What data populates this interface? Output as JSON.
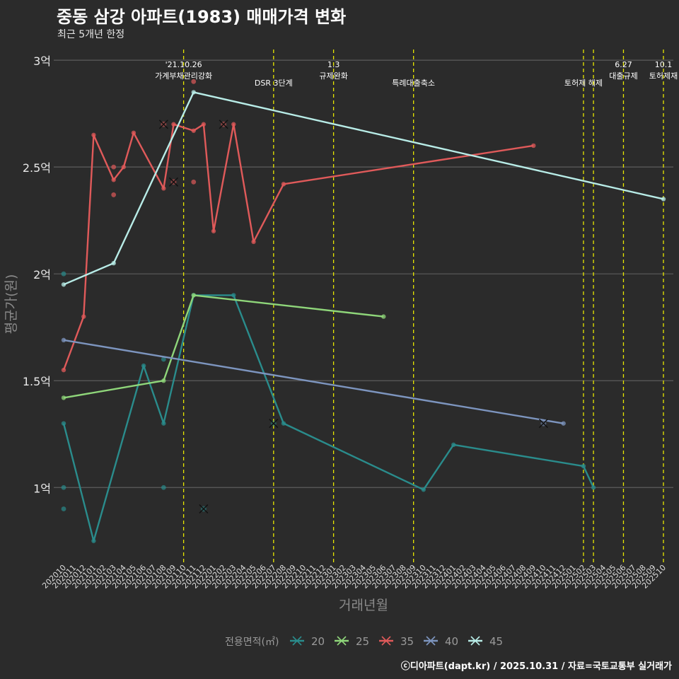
{
  "title": "중동 삼강 아파트(1983) 매매가격 변화",
  "subtitle": "최근 5개년 한정",
  "caption": "ⓒ디아파트(dapt.kr) / 2025.10.31 / 자료=국토교통부 실거래가",
  "chart_data": {
    "type": "line",
    "xlabel": "거래년월",
    "ylabel": "평균가(원)",
    "ylim": [
      0.65,
      3.05
    ],
    "yticks": [
      1,
      1.5,
      2,
      2.5,
      3
    ],
    "ytick_labels": [
      "1억",
      "1.5억",
      "2억",
      "2.5억",
      "3억"
    ],
    "categories": [
      "202010",
      "202011",
      "202012",
      "202101",
      "202102",
      "202103",
      "202104",
      "202105",
      "202106",
      "202107",
      "202108",
      "202109",
      "202110",
      "202111",
      "202112",
      "202201",
      "202202",
      "202203",
      "202204",
      "202205",
      "202206",
      "202207",
      "202208",
      "202209",
      "202210",
      "202211",
      "202212",
      "202301",
      "202302",
      "202303",
      "202304",
      "202305",
      "202306",
      "202307",
      "202308",
      "202309",
      "202310",
      "202311",
      "202312",
      "202401",
      "202402",
      "202403",
      "202404",
      "202405",
      "202406",
      "202407",
      "202408",
      "202409",
      "202410",
      "202411",
      "202412",
      "202501",
      "202502",
      "202503",
      "202504",
      "202505",
      "202506",
      "202507",
      "202508",
      "202509",
      "202510"
    ],
    "legend_title": "전용면적(㎡)",
    "legend_position": "bottom",
    "series": [
      {
        "name": "20",
        "color": "#2a8c8c",
        "line": [
          [
            "202010",
            1.3
          ],
          [
            "202101",
            0.75
          ],
          [
            "202106",
            1.57
          ],
          [
            "202108",
            1.3
          ],
          [
            "202111",
            1.9
          ],
          [
            "202203",
            1.9
          ],
          [
            "202208",
            1.3
          ],
          [
            "202310",
            0.99
          ],
          [
            "202401",
            1.2
          ],
          [
            "202502",
            1.1
          ],
          [
            "202503",
            1.0
          ]
        ],
        "points": [
          [
            "202010",
            2.0
          ],
          [
            "202010",
            1.0
          ],
          [
            "202010",
            0.9
          ],
          [
            "202108",
            1.6
          ],
          [
            "202108",
            1.0
          ]
        ],
        "cancelled": [
          [
            "202112",
            0.9
          ],
          [
            "202207",
            1.3
          ]
        ]
      },
      {
        "name": "25",
        "color": "#8fd67a",
        "line": [
          [
            "202010",
            1.42
          ],
          [
            "202108",
            1.5
          ],
          [
            "202111",
            1.9
          ],
          [
            "202306",
            1.8
          ]
        ],
        "points": [],
        "cancelled": []
      },
      {
        "name": "35",
        "color": "#e05a5a",
        "line": [
          [
            "202010",
            1.55
          ],
          [
            "202012",
            1.8
          ],
          [
            "202101",
            2.65
          ],
          [
            "202103",
            2.44
          ],
          [
            "202104",
            2.5
          ],
          [
            "202105",
            2.66
          ],
          [
            "202108",
            2.4
          ],
          [
            "202109",
            2.7
          ],
          [
            "202111",
            2.67
          ],
          [
            "202112",
            2.7
          ],
          [
            "202201",
            2.2
          ],
          [
            "202203",
            2.7
          ],
          [
            "202205",
            2.15
          ],
          [
            "202208",
            2.42
          ],
          [
            "202409",
            2.6
          ]
        ],
        "points": [
          [
            "202103",
            2.5
          ],
          [
            "202103",
            2.37
          ],
          [
            "202111",
            2.9
          ],
          [
            "202111",
            2.43
          ]
        ],
        "cancelled": [
          [
            "202108",
            2.7
          ],
          [
            "202109",
            2.43
          ],
          [
            "202202",
            2.7
          ]
        ]
      },
      {
        "name": "40",
        "color": "#7d95bf",
        "line": [
          [
            "202010",
            1.69
          ],
          [
            "202412",
            1.3
          ]
        ],
        "points": [],
        "cancelled": [
          [
            "202410",
            1.3
          ]
        ]
      },
      {
        "name": "45",
        "color": "#b8ece7",
        "line": [
          [
            "202010",
            1.95
          ],
          [
            "202103",
            2.05
          ],
          [
            "202111",
            2.85
          ],
          [
            "202510",
            2.35
          ]
        ],
        "points": [],
        "cancelled": []
      }
    ],
    "events": [
      {
        "x": "202110",
        "label": "'21.10.26\n가계부채관리강화"
      },
      {
        "x": "202207",
        "label": "DSR 3단계"
      },
      {
        "x": "202301",
        "label": "1.3\n규제완화"
      },
      {
        "x": "202309",
        "label": "특례대출축소"
      },
      {
        "x": "202502",
        "label": "토허제 해제"
      },
      {
        "x": "202503",
        "label": ""
      },
      {
        "x": "202506",
        "label": "6.27\n대출규제"
      },
      {
        "x": "202510",
        "label": "10.1\n토허제재"
      }
    ]
  }
}
